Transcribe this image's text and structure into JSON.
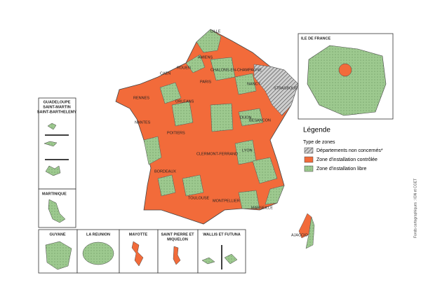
{
  "map": {
    "cities": [
      "LILLE",
      "AMIENS",
      "ROUEN",
      "CAEN",
      "PARIS",
      "CHALONS-EN-CHAMPAGNE",
      "NANCY",
      "STRASBOURG",
      "RENNES",
      "NANTES",
      "ORLEANS",
      "DIJON",
      "BESANCON",
      "POITIERS",
      "CLERMONT-FERRAND",
      "LYON",
      "BORDEAUX",
      "TOULOUSE",
      "MONTPELLIER",
      "MARSEILLE",
      "AJACCIO"
    ],
    "insets": {
      "ile_de_france": "ILE DE FRANCE",
      "guadeloupe": [
        "GUADELOUPE",
        "SAINT-MARTIN",
        "SAINT-BARTHELEMY"
      ],
      "martinique": "MARTINIQUE",
      "guyane": "GUYANE",
      "reunion": "LA REUNION",
      "mayotte": "MAYOTTE",
      "saint_pierre": [
        "SAINT PIERRE ET",
        "MIQUELON"
      ],
      "wallis": "WALLIS ET FUTUNA"
    },
    "legend": {
      "title": "Légende",
      "subtitle": "Type de zones",
      "items": [
        "Départements non concernés*",
        "Zone d'installation contrôlée",
        "Zone d'installation libre"
      ]
    },
    "credit": "Fonds cartographiques : IGN et CGET"
  }
}
